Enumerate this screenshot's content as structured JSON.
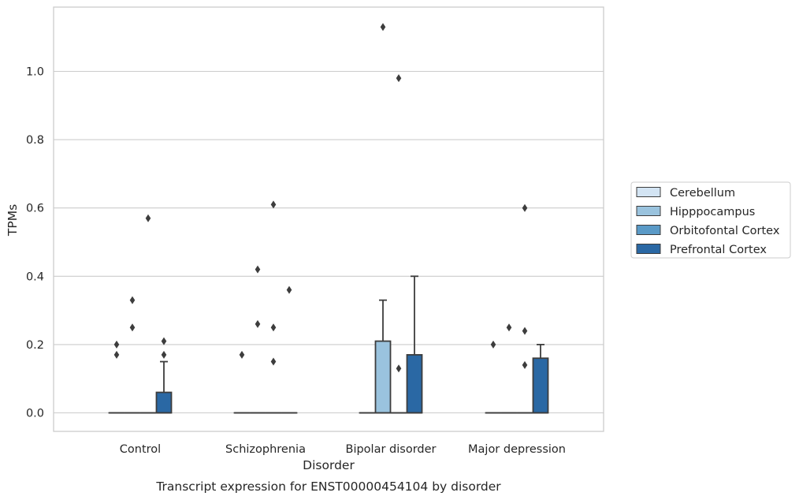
{
  "chart_data": {
    "type": "box",
    "title": "Transcript expression for ENST00000454104 by disorder",
    "xlabel": "Disorder",
    "ylabel": "TPMs",
    "categories": [
      "Control",
      "Schizophrenia",
      "Bipolar disorder",
      "Major depression"
    ],
    "ylim": [
      -0.055,
      1.185
    ],
    "yticks": [
      0.0,
      0.2,
      0.4,
      0.6,
      0.8,
      1.0
    ],
    "ytick_labels": [
      "0.0",
      "0.2",
      "0.4",
      "0.6",
      "0.8",
      "1.0"
    ],
    "grid": true,
    "legend_position": "right",
    "series": [
      {
        "name": "Cerebellum",
        "color": "#d3e4f3",
        "boxes": [
          {
            "q1": 0,
            "median": 0,
            "q3": 0,
            "whisker_low": 0,
            "whisker_high": 0,
            "outliers": [
              0.2,
              0.17
            ]
          },
          {
            "q1": 0,
            "median": 0,
            "q3": 0,
            "whisker_low": 0,
            "whisker_high": 0,
            "outliers": [
              0.17
            ]
          },
          {
            "q1": 0,
            "median": 0,
            "q3": 0,
            "whisker_low": 0,
            "whisker_high": 0,
            "outliers": []
          },
          {
            "q1": 0,
            "median": 0,
            "q3": 0,
            "whisker_low": 0,
            "whisker_high": 0,
            "outliers": [
              0.2
            ]
          }
        ]
      },
      {
        "name": "Hipppocampus",
        "color": "#9ac3de",
        "boxes": [
          {
            "q1": 0,
            "median": 0,
            "q3": 0,
            "whisker_low": 0,
            "whisker_high": 0,
            "outliers": [
              0.33,
              0.25
            ]
          },
          {
            "q1": 0,
            "median": 0,
            "q3": 0,
            "whisker_low": 0,
            "whisker_high": 0,
            "outliers": [
              0.42,
              0.26
            ]
          },
          {
            "q1": 0,
            "median": 0,
            "q3": 0.21,
            "whisker_low": 0,
            "whisker_high": 0.33,
            "outliers": [
              1.13
            ]
          },
          {
            "q1": 0,
            "median": 0,
            "q3": 0,
            "whisker_low": 0,
            "whisker_high": 0,
            "outliers": [
              0.25
            ]
          }
        ]
      },
      {
        "name": "Orbitofontal Cortex",
        "color": "#5a9ac7",
        "boxes": [
          {
            "q1": 0,
            "median": 0,
            "q3": 0,
            "whisker_low": 0,
            "whisker_high": 0,
            "outliers": [
              0.57
            ]
          },
          {
            "q1": 0,
            "median": 0,
            "q3": 0,
            "whisker_low": 0,
            "whisker_high": 0,
            "outliers": [
              0.61,
              0.25,
              0.15
            ]
          },
          {
            "q1": 0,
            "median": 0,
            "q3": 0,
            "whisker_low": 0,
            "whisker_high": 0,
            "outliers": [
              0.98,
              0.13
            ]
          },
          {
            "q1": 0,
            "median": 0,
            "q3": 0,
            "whisker_low": 0,
            "whisker_high": 0,
            "outliers": [
              0.6,
              0.24,
              0.14
            ]
          }
        ]
      },
      {
        "name": "Prefrontal Cortex",
        "color": "#2a68a4",
        "boxes": [
          {
            "q1": 0,
            "median": 0,
            "q3": 0.06,
            "whisker_low": 0,
            "whisker_high": 0.15,
            "outliers": [
              0.21,
              0.17
            ]
          },
          {
            "q1": 0,
            "median": 0,
            "q3": 0,
            "whisker_low": 0,
            "whisker_high": 0,
            "outliers": [
              0.36
            ]
          },
          {
            "q1": 0,
            "median": 0,
            "q3": 0.17,
            "whisker_low": 0,
            "whisker_high": 0.4,
            "outliers": []
          },
          {
            "q1": 0,
            "median": 0,
            "q3": 0.16,
            "whisker_low": 0,
            "whisker_high": 0.2,
            "outliers": []
          }
        ]
      }
    ]
  }
}
